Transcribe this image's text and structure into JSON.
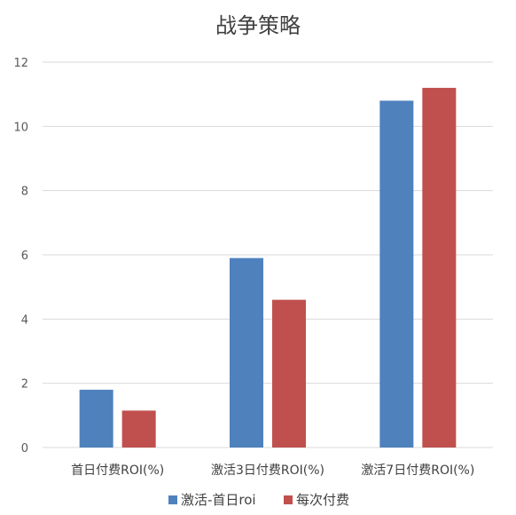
{
  "chart_data": {
    "type": "bar",
    "title": "战争策略",
    "categories": [
      "首日付费ROI(%)",
      "激活3日付费ROI(%)",
      "激活7日付费ROI(%)"
    ],
    "series": [
      {
        "name": "激活-首日roi",
        "color": "#4f81bd",
        "values": [
          1.8,
          5.9,
          10.8
        ]
      },
      {
        "name": "每次付费",
        "color": "#c0504d",
        "values": [
          1.15,
          4.6,
          11.2
        ]
      }
    ],
    "ylim": [
      0,
      12
    ],
    "yticks": [
      "0",
      "2",
      "4",
      "6",
      "8",
      "10",
      "12"
    ],
    "grid": true,
    "legend_position": "bottom"
  }
}
